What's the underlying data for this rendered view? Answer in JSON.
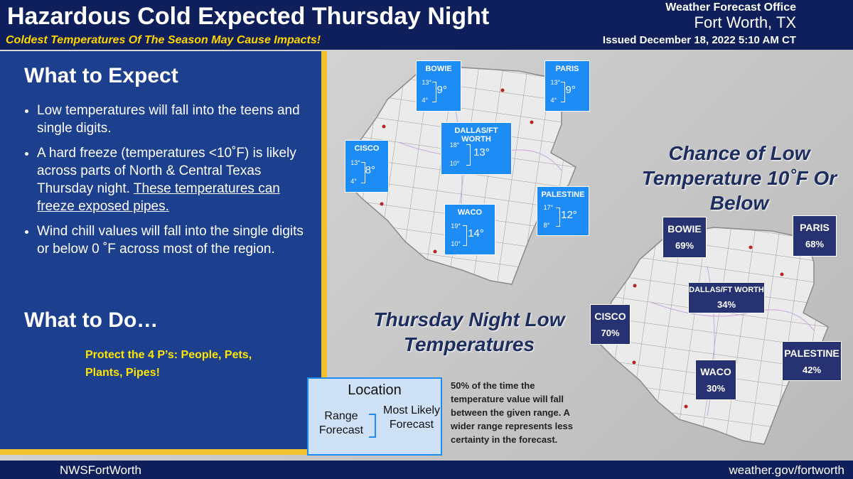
{
  "header": {
    "title": "Hazardous Cold Expected Thursday Night",
    "subtitle": "Coldest Temperatures Of The Season May Cause Impacts!",
    "office": "Weather Forecast Office",
    "location": "Fort Worth, TX",
    "issued": "Issued December 18, 2022 5:10 AM CT"
  },
  "expect": {
    "heading": "What to Expect",
    "bullets": [
      {
        "text": "Low temperatures will fall into the teens and single digits."
      },
      {
        "text": "A hard freeze (temperatures <10˚F) is likely across parts of North & Central Texas Thursday night.",
        "underlined": "These temperatures can freeze exposed pipes."
      },
      {
        "text": "Wind chill values will fall into the single digits or below 0 ˚F across most of the region."
      }
    ]
  },
  "todo": {
    "heading": "What to Do…",
    "text": "Protect the 4 P’s: People, Pets, Plants, Pipes!"
  },
  "low_map": {
    "title": "Thursday Night Low Temperatures",
    "cities": [
      {
        "name": "BOWIE",
        "high": "13°",
        "low": "4°",
        "likely": "9°"
      },
      {
        "name": "PARIS",
        "high": "13°",
        "low": "4°",
        "likely": "9°"
      },
      {
        "name": "DALLAS/FT WORTH",
        "high": "18°",
        "low": "10°",
        "likely": "13°"
      },
      {
        "name": "CISCO",
        "high": "13°",
        "low": "4°",
        "likely": "8°"
      },
      {
        "name": "PALESTINE",
        "high": "17°",
        "low": "8°",
        "likely": "12°"
      },
      {
        "name": "WACO",
        "high": "19°",
        "low": "10°",
        "likely": "14°"
      }
    ]
  },
  "legend": {
    "location": "Location",
    "range": "Range Forecast",
    "likely": "Most Likely Forecast",
    "note": "50% of the time the temperature value will fall between the given range. A wider range represents less certainty in the forecast."
  },
  "chance_map": {
    "title": "Chance of Low Temperature 10˚F Or Below",
    "cities": [
      {
        "name": "BOWIE",
        "chance": "69%"
      },
      {
        "name": "PARIS",
        "chance": "68%"
      },
      {
        "name": "DALLAS/FT WORTH",
        "chance": "34%"
      },
      {
        "name": "CISCO",
        "chance": "70%"
      },
      {
        "name": "WACO",
        "chance": "30%"
      },
      {
        "name": "PALESTINE",
        "chance": "42%"
      }
    ]
  },
  "footer": {
    "handle": "NWSFortWorth",
    "url": "weather.gov/fortworth"
  }
}
